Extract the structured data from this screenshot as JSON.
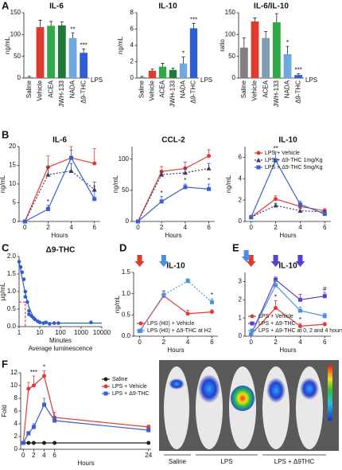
{
  "panel_labels": [
    "A",
    "B",
    "C",
    "D",
    "E",
    "F"
  ],
  "image": {
    "labels": [
      "Saline",
      "LPS",
      "LPS + Δ9THC"
    ]
  },
  "chart_data": [
    {
      "type": "bar",
      "title": "IL-6",
      "ylabel": "ng/mL",
      "categories": [
        "Saline",
        "Vehicle",
        "ACEA",
        "JWH-133",
        "NADA",
        "Δ9-THC"
      ],
      "values": [
        2,
        117,
        120,
        121,
        92,
        58
      ],
      "errors": [
        2,
        16,
        10,
        8,
        12,
        9
      ],
      "colors": [
        "#808080",
        "#e03a2f",
        "#2faa47",
        "#1e7a38",
        "#6fa8e0",
        "#2f5fcf"
      ],
      "significance": [
        null,
        null,
        null,
        null,
        "**",
        "***"
      ],
      "group_label": "LPS",
      "ylim": [
        0,
        150
      ],
      "yticks": [
        0,
        50,
        100,
        150
      ]
    },
    {
      "type": "bar",
      "title": "IL-10",
      "ylabel": "ng/mL",
      "categories": [
        "Saline",
        "Vehicle",
        "ACEA",
        "JWH-133",
        "NADA",
        "Δ9-THC"
      ],
      "values": [
        0.1,
        0.9,
        1.4,
        1.0,
        1.8,
        6.1
      ],
      "errors": [
        0.1,
        0.2,
        0.4,
        0.2,
        0.8,
        0.6
      ],
      "colors": [
        "#808080",
        "#e03a2f",
        "#2faa47",
        "#1e7a38",
        "#6fa8e0",
        "#2f5fcf"
      ],
      "significance": [
        null,
        null,
        null,
        null,
        "*",
        "***"
      ],
      "group_label": "LPS",
      "ylim": [
        0,
        8
      ],
      "yticks": [
        0,
        2,
        4,
        6,
        8
      ]
    },
    {
      "type": "bar",
      "title": "IL-6/IL-10",
      "ylabel": "ratio",
      "categories": [
        "Saline",
        "Vehicle",
        "ACEA",
        "JWH-133",
        "NADA",
        "Δ9-THC"
      ],
      "values": [
        70,
        130,
        92,
        128,
        55,
        7
      ],
      "errors": [
        22,
        8,
        15,
        20,
        18,
        3
      ],
      "colors": [
        "#808080",
        "#e03a2f",
        "#7f9fb0",
        "#2faa47",
        "#6fa8e0",
        "#2f5fcf"
      ],
      "significance": [
        null,
        null,
        null,
        null,
        "*",
        "***"
      ],
      "group_label": "LPS",
      "ylim": [
        0,
        150
      ],
      "yticks": [
        0,
        50,
        100,
        150
      ]
    },
    {
      "type": "line",
      "title": "IL-6",
      "ylabel": "ng/mL",
      "xlabel": "Hours",
      "x": [
        0,
        2,
        4,
        6
      ],
      "xlim": [
        -0.5,
        6.5
      ],
      "xticks": [
        0,
        2,
        4,
        6
      ],
      "ylim": [
        0,
        20
      ],
      "yticks": [
        0,
        5,
        10,
        15,
        20
      ],
      "series": [
        {
          "color": "#e03a2f",
          "marker": "circle",
          "values": [
            0,
            14.5,
            17,
            15.5
          ],
          "errors": [
            0,
            3,
            3,
            4
          ]
        },
        {
          "color": "#3a3a6a",
          "marker": "triangle",
          "dash": true,
          "values": [
            0,
            12.5,
            13.5,
            8.5
          ],
          "errors": [
            0,
            2,
            2,
            2
          ]
        },
        {
          "color": "#3a5fd0",
          "marker": "square",
          "values": [
            0,
            3.3,
            17,
            6
          ],
          "errors": [
            0,
            1,
            2,
            2
          ],
          "significance": [
            null,
            "*",
            null,
            "*"
          ]
        }
      ]
    },
    {
      "type": "line",
      "title": "CCL-2",
      "ylabel": "ng/mL",
      "xlabel": "Hours",
      "x": [
        0,
        2,
        4,
        6
      ],
      "xlim": [
        -0.5,
        6.5
      ],
      "xticks": [
        0,
        2,
        4,
        6
      ],
      "ylim": [
        0,
        120
      ],
      "yticks": [
        0,
        50,
        100
      ],
      "series": [
        {
          "color": "#e03a2f",
          "marker": "circle",
          "values": [
            0,
            80,
            85,
            105
          ],
          "errors": [
            0,
            8,
            10,
            10
          ]
        },
        {
          "color": "#3a3a6a",
          "marker": "triangle",
          "dash": true,
          "values": [
            0,
            75,
            78,
            85
          ],
          "errors": [
            0,
            5,
            8,
            8
          ]
        },
        {
          "color": "#3a5fd0",
          "marker": "square",
          "values": [
            0,
            32,
            55,
            52
          ],
          "errors": [
            0,
            8,
            5,
            8
          ],
          "significance": [
            null,
            "*",
            "*",
            "*"
          ]
        }
      ]
    },
    {
      "type": "line",
      "title": "IL-10",
      "ylabel": "ng/mL",
      "xlabel": "Hours",
      "x": [
        0,
        2,
        4,
        6
      ],
      "xlim": [
        -0.5,
        6.5
      ],
      "xticks": [
        0,
        2,
        4,
        6
      ],
      "ylim": [
        0,
        7
      ],
      "yticks": [
        0,
        2,
        4,
        6
      ],
      "legend": "upper right",
      "series": [
        {
          "name": "LPS + Vehicle",
          "color": "#e03a2f",
          "marker": "circle",
          "values": [
            0.4,
            2.1,
            1.4,
            1.0
          ],
          "errors": [
            0.1,
            0.3,
            0.3,
            0.2
          ]
        },
        {
          "name": "LPS + Δ9-THC 1mg/Kg",
          "color": "#3a3a6a",
          "marker": "triangle",
          "dash": true,
          "values": [
            0.4,
            1.5,
            1.0,
            0.9
          ],
          "errors": [
            0.1,
            0.2,
            0.2,
            0.1
          ]
        },
        {
          "name": "LPS + Δ9-THC 5mg/Kg",
          "color": "#3a5fd0",
          "marker": "square",
          "values": [
            0.4,
            5.7,
            1.6,
            0.7
          ],
          "errors": [
            0.1,
            0.8,
            0.3,
            0.2
          ],
          "significance": [
            null,
            "**",
            null,
            null
          ]
        }
      ]
    },
    {
      "type": "scatter",
      "title": "Δ9-THC",
      "ylabel": "μg/mL",
      "xlabel": "Minutes",
      "subtitle": "Average luminescence",
      "xscale": "log",
      "xlim": [
        1,
        10000
      ],
      "xticks": [
        1,
        10,
        100,
        1000,
        10000
      ],
      "ylim": [
        0,
        2.0
      ],
      "yticks": [
        {
          "value": 0,
          "label": "0.0"
        },
        {
          "value": 0.5,
          "label": "0.5"
        },
        {
          "value": 1.0,
          "label": "1.0"
        },
        {
          "value": 1.5,
          "label": "1.5"
        },
        {
          "value": 2.0,
          "label": "2.0"
        }
      ],
      "color": "#2f5fcf",
      "x": [
        1,
        1.2,
        1.4,
        1.7,
        2,
        2,
        2.5,
        3,
        3,
        4,
        5,
        6,
        8,
        10,
        15,
        20,
        30,
        50,
        80,
        3000
      ],
      "values": [
        1.85,
        1.7,
        1.55,
        1.35,
        1.0,
        0.85,
        0.7,
        0.45,
        0.35,
        0.3,
        0.25,
        0.2,
        0.15,
        0.12,
        0.1,
        0.12,
        0.08,
        0.1,
        0.1,
        0.12
      ],
      "fit": {
        "x": [
          1,
          1.5,
          2,
          3,
          5,
          10,
          30,
          100,
          10000
        ],
        "values": [
          1.85,
          1.3,
          0.95,
          0.55,
          0.25,
          0.12,
          0.1,
          0.1,
          0.1
        ]
      },
      "threshold": {
        "x": 2,
        "y": 0.7
      }
    },
    {
      "type": "line",
      "title": "IL-10",
      "ylabel": "ng/mL",
      "xlabel": "Hours",
      "x": [
        0,
        2,
        4,
        6
      ],
      "xlim": [
        -0.5,
        6.5
      ],
      "xticks": [
        0,
        2,
        4,
        6
      ],
      "ylim": [
        0,
        1.5
      ],
      "yticks": [
        {
          "value": 0,
          "label": "0.0"
        },
        {
          "value": 0.5,
          "label": "0.5"
        },
        {
          "value": 1.0,
          "label": "1.0"
        },
        {
          "value": 1.5,
          "label": "1.5"
        }
      ],
      "legend": "lower left",
      "arrows": [
        {
          "x": 0,
          "color": "#e03a2f"
        },
        {
          "x": 2,
          "color": "#4a90e2"
        }
      ],
      "series": [
        {
          "name": "LPS (H0) + Vehicle",
          "color": "#e03a2f",
          "marker": "circle",
          "values": [
            0.12,
            0.95,
            0.53,
            0.57
          ],
          "errors": [
            0.02,
            0.1,
            0.08,
            0.05
          ]
        },
        {
          "name": "LPS (H0) + Δ9-THC at H2",
          "color": "#4a90e2",
          "marker": "square",
          "dash": true,
          "values": [
            0.12,
            0.97,
            1.3,
            0.8
          ],
          "errors": [
            0.02,
            0.1,
            0.05,
            0.08
          ],
          "significance": [
            null,
            null,
            null,
            "*"
          ]
        }
      ]
    },
    {
      "type": "line",
      "title": "IL-10",
      "xlabel": "Hours",
      "x": [
        0,
        2,
        4,
        6
      ],
      "xlim": [
        -0.5,
        6.5
      ],
      "xticks": [
        0,
        2,
        4,
        6
      ],
      "ylim": [
        0,
        3.5
      ],
      "yticks": [
        0,
        1,
        2,
        3
      ],
      "legend": "lower left",
      "arrows": [
        {
          "x": 0,
          "color": "#e03a2f"
        },
        {
          "x": 0,
          "color": "#4a90e2"
        },
        {
          "x": 2,
          "color": "#5a3fd0"
        },
        {
          "x": 4,
          "color": "#5a3fd0"
        }
      ],
      "series": [
        {
          "name": "LPS + Vehicle",
          "color": "#e03a2f",
          "marker": "circle",
          "values": [
            0.1,
            1.55,
            0.55,
            0.65
          ],
          "errors": [
            0.02,
            0.4,
            0.15,
            0.1
          ],
          "significance": [
            null,
            "*",
            "*",
            null
          ]
        },
        {
          "name": "LPS + Δ9-THC",
          "color": "#5a3fd0",
          "marker": "square",
          "values": [
            0.1,
            3.1,
            2.0,
            2.2
          ],
          "errors": [
            0.02,
            0.15,
            0.3,
            0.2
          ],
          "significance": [
            null,
            null,
            null,
            "#"
          ]
        },
        {
          "name": "LPS + Δ9-THC at 0, 2 and 4 hours",
          "color": "#4a90e2",
          "marker": "square",
          "values": [
            0.1,
            2.8,
            1.4,
            1.1
          ],
          "errors": [
            0.02,
            0.25,
            0.2,
            0.15
          ]
        }
      ]
    },
    {
      "type": "line",
      "ylabel": "Fold",
      "xlabel": "Hours",
      "x": [
        0,
        1,
        2,
        4,
        6,
        24
      ],
      "xlim": [
        -0.5,
        24.5
      ],
      "xticks": [
        0,
        2,
        4,
        6,
        24
      ],
      "ylim": [
        0,
        12
      ],
      "yticks": [
        0,
        2,
        4,
        6,
        8,
        10,
        12
      ],
      "legend": "upper right",
      "series": [
        {
          "name": "Saline",
          "color": "#222222",
          "marker": "circle",
          "values": [
            1,
            1,
            1,
            1,
            1,
            1
          ]
        },
        {
          "name": "LPS + Vehicle",
          "color": "#e03a2f",
          "marker": "circle",
          "values": [
            1,
            9.5,
            10,
            11.5,
            5,
            3.5
          ],
          "errors": [
            0,
            1,
            1.5,
            0.8,
            0.8,
            0.3
          ],
          "significance": [
            null,
            null,
            "***",
            "*",
            null,
            null
          ]
        },
        {
          "name": "LPS + Δ9-THC",
          "color": "#3a5fd0",
          "marker": "square",
          "values": [
            1,
            2.5,
            3.5,
            7,
            4.5,
            3
          ],
          "errors": [
            0,
            0.3,
            0.5,
            1,
            0.6,
            0.3
          ]
        }
      ]
    }
  ]
}
